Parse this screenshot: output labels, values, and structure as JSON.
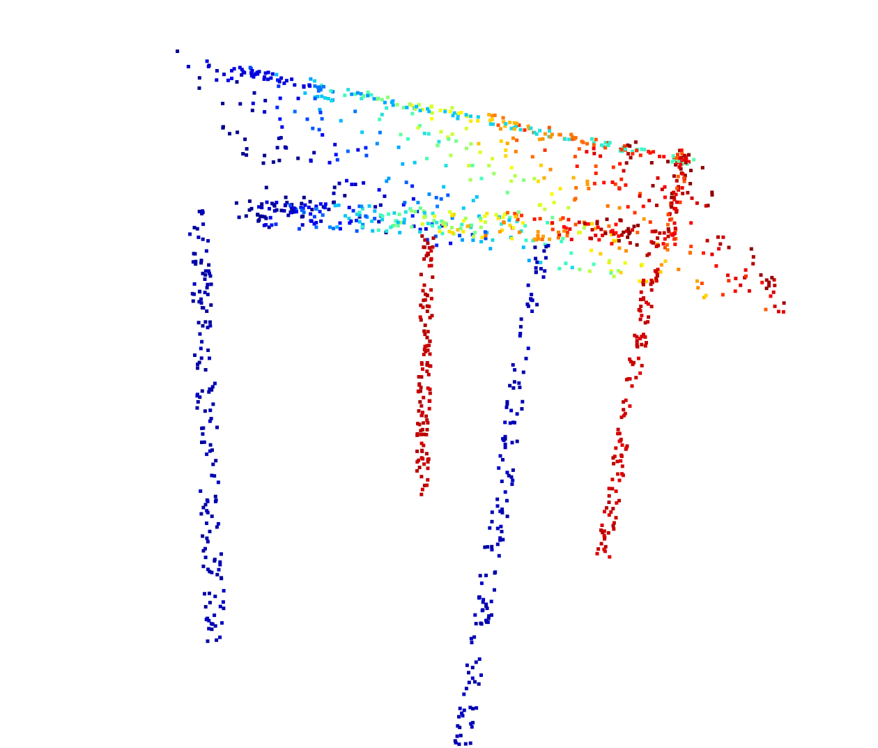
{
  "scene": {
    "object": "table",
    "render": "3D point cloud",
    "colormap": "jet",
    "background_color": "#ffffff",
    "colormap_stops": [
      "#00008f",
      "#0000ff",
      "#00bfff",
      "#40ffbf",
      "#ffff00",
      "#ff8000",
      "#ff0000",
      "#8f0000"
    ]
  }
}
